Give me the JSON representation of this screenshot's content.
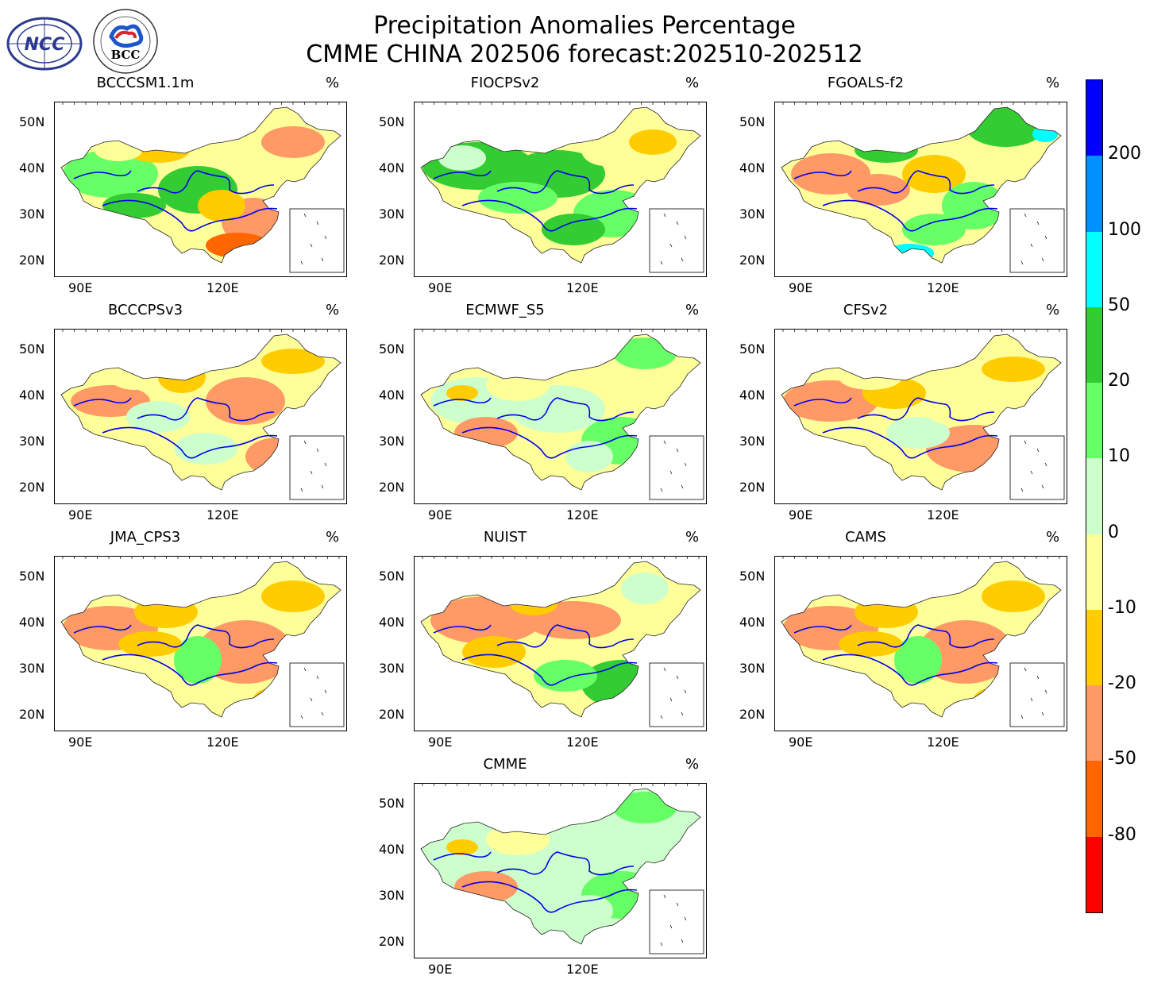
{
  "header": {
    "title_line1": "Precipitation Anomalies Percentage",
    "title_line2": "CMME CHINA 202506 forecast:202510-202512"
  },
  "logos": {
    "ncc_text": "NCC",
    "bcc_text": "BCC"
  },
  "units": "%",
  "axes": {
    "lat_labels": [
      "50N",
      "40N",
      "30N",
      "20N"
    ],
    "lon_labels": [
      "90E",
      "120E"
    ]
  },
  "panels": [
    {
      "name": "BCCCSM1.1m",
      "tone": "mixed-dry-south"
    },
    {
      "name": "FIOCPSv2",
      "tone": "wet"
    },
    {
      "name": "FGOALS-f2",
      "tone": "mixed-wet-north"
    },
    {
      "name": "BCCCPSv3",
      "tone": "mixed"
    },
    {
      "name": "ECMWF_S5",
      "tone": "slightly-wet"
    },
    {
      "name": "CFSv2",
      "tone": "dry-south"
    },
    {
      "name": "JMA_CPS3",
      "tone": "dry"
    },
    {
      "name": "NUIST",
      "tone": "dry-north-wet-south"
    },
    {
      "name": "CAMS",
      "tone": "dry"
    },
    {
      "name": "CMME",
      "tone": "slightly-wet"
    }
  ],
  "colorbar": {
    "labels": [
      "200",
      "100",
      "50",
      "20",
      "10",
      "0",
      "-10",
      "-20",
      "-50",
      "-80"
    ],
    "colors": [
      "#0000ff",
      "#0090ff",
      "#00ffff",
      "#33cc33",
      "#66ff66",
      "#ccffcc",
      "#ffff99",
      "#ffcc00",
      "#ff9966",
      "#ff6600",
      "#ff0000"
    ]
  }
}
